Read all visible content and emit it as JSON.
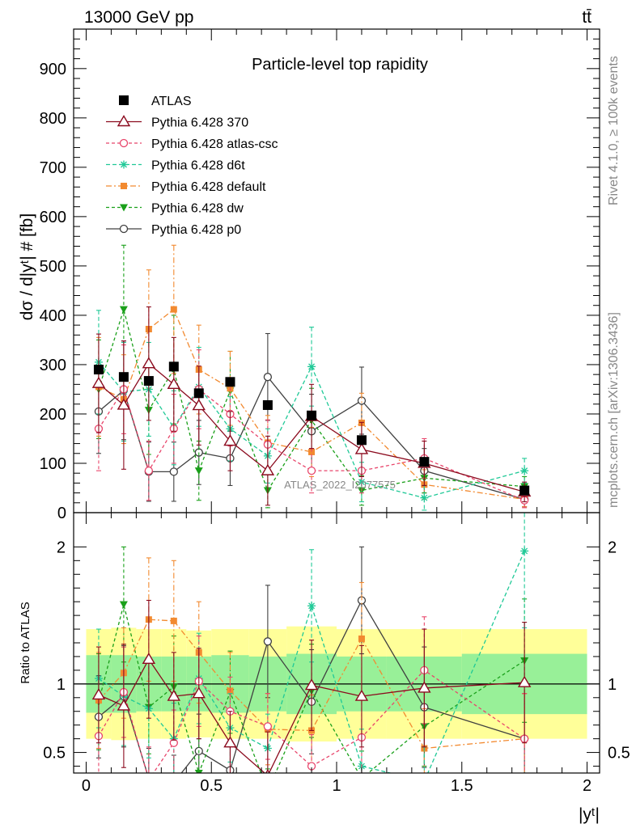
{
  "header": {
    "energy_label": "13000 GeV pp",
    "process_label": "tt̄"
  },
  "side_labels": {
    "rivet": "Rivet 4.1.0, ≥ 100k events",
    "mcplots": "mcplots.cern.ch [arXiv:1306.3436]"
  },
  "colors": {
    "ATLAS": "#000000",
    "p370": "#8b0a1e",
    "atlascsc": "#e8456b",
    "d6t": "#20c997",
    "default": "#f28a30",
    "dw": "#1aa01a",
    "p0": "#404040",
    "band_green": "#98f098",
    "band_yellow": "#ffff99"
  },
  "chart_data": [
    {
      "type": "line",
      "title": "Particle-level top rapidity",
      "ylabel": "dσ / d|yᵗ| # [fb]",
      "xlabel": "|yᵗ|",
      "xlim": [
        -0.05,
        2.05
      ],
      "ylim": [
        0,
        980
      ],
      "yticks": [
        0,
        100,
        200,
        300,
        400,
        500,
        600,
        700,
        800,
        900
      ],
      "annotation": "ATLAS_2022_I2077575",
      "x": [
        0.05,
        0.15,
        0.25,
        0.35,
        0.45,
        0.575,
        0.725,
        0.9,
        1.1,
        1.35,
        1.75
      ],
      "series": [
        {
          "name": "ATLAS",
          "key": "ATLAS",
          "marker": "square",
          "values": [
            290,
            275,
            267,
            296,
            242,
            265,
            218,
            197,
            147,
            103,
            45
          ],
          "errors": [
            6,
            6,
            6,
            6,
            6,
            6,
            6,
            6,
            6,
            6,
            6
          ]
        },
        {
          "name": "Pythia 6.428 370",
          "key": "p370",
          "marker": "triangle-open",
          "values": [
            262,
            218,
            302,
            260,
            217,
            145,
            85,
            195,
            128,
            100,
            42
          ],
          "errors": [
            100,
            130,
            115,
            95,
            80,
            60,
            70,
            65,
            55,
            45,
            20
          ]
        },
        {
          "name": "Pythia 6.428 atlas-csc",
          "key": "atlascsc",
          "marker": "circle-open",
          "values": [
            170,
            250,
            85,
            170,
            250,
            200,
            138,
            85,
            85,
            110,
            25
          ],
          "errors": [
            85,
            90,
            60,
            70,
            80,
            65,
            50,
            45,
            45,
            40,
            15
          ]
        },
        {
          "name": "Pythia 6.428 d6t",
          "key": "d6t",
          "marker": "asterisk",
          "values": [
            305,
            245,
            250,
            172,
            255,
            170,
            115,
            296,
            62,
            30,
            85
          ],
          "errors": [
            105,
            100,
            95,
            75,
            80,
            65,
            55,
            80,
            40,
            25,
            25
          ]
        },
        {
          "name": "Pythia 6.428 default",
          "key": "default",
          "marker": "square",
          "values": [
            255,
            230,
            372,
            412,
            290,
            252,
            142,
            123,
            182,
            57,
            27
          ],
          "errors": [
            100,
            90,
            120,
            130,
            90,
            75,
            55,
            50,
            60,
            30,
            15
          ]
        },
        {
          "name": "Pythia 6.428 dw",
          "key": "dw",
          "marker": "triangle-down",
          "values": [
            250,
            412,
            208,
            290,
            85,
            247,
            45,
            187,
            45,
            70,
            53
          ],
          "errors": [
            100,
            130,
            90,
            110,
            60,
            80,
            35,
            65,
            30,
            30,
            20
          ]
        },
        {
          "name": "Pythia 6.428 p0",
          "key": "p0",
          "marker": "circle-open",
          "values": [
            205,
            248,
            83,
            83,
            122,
            110,
            275,
            165,
            227,
            85,
            27
          ],
          "errors": [
            85,
            100,
            60,
            60,
            65,
            55,
            88,
            75,
            68,
            45,
            15
          ]
        }
      ]
    },
    {
      "type": "line",
      "ylabel": "Ratio to ATLAS",
      "xlabel": "|yᵗ|",
      "xlim": [
        -0.05,
        2.05
      ],
      "ylim": [
        0.35,
        2.25
      ],
      "yticks": [
        0.5,
        1,
        2
      ],
      "xticks": [
        0,
        0.5,
        1,
        1.5,
        2
      ],
      "reference": 1,
      "bin_edges": [
        0,
        0.1,
        0.2,
        0.3,
        0.4,
        0.5,
        0.65,
        0.8,
        1.0,
        1.2,
        1.5,
        2.0
      ],
      "band_inner": [
        0.21,
        0.21,
        0.2,
        0.2,
        0.2,
        0.21,
        0.2,
        0.22,
        0.2,
        0.2,
        0.22
      ],
      "band_outer": [
        0.4,
        0.41,
        0.4,
        0.4,
        0.39,
        0.4,
        0.4,
        0.42,
        0.4,
        0.4,
        0.4
      ],
      "x": [
        0.05,
        0.15,
        0.25,
        0.35,
        0.45,
        0.575,
        0.725,
        0.9,
        1.1,
        1.35,
        1.75
      ],
      "series": [
        {
          "name": "Pythia 6.428 370",
          "key": "p370",
          "marker": "triangle-open",
          "values": [
            0.92,
            0.84,
            1.18,
            0.91,
            0.93,
            0.57,
            0.33,
            0.99,
            0.91,
            0.97,
            1.01
          ],
          "errors": [
            0.35,
            0.45,
            0.43,
            0.32,
            0.33,
            0.23,
            0.32,
            0.33,
            0.37,
            0.43,
            0.44
          ]
        },
        {
          "name": "Pythia 6.428 atlas-csc",
          "key": "atlascsc",
          "marker": "circle-open",
          "values": [
            0.62,
            0.94,
            0.3,
            0.57,
            1.02,
            0.8,
            0.69,
            0.4,
            0.61,
            1.1,
            0.6
          ],
          "errors": [
            0.3,
            0.33,
            0.24,
            0.24,
            0.33,
            0.25,
            0.24,
            0.23,
            0.3,
            0.39,
            0.33
          ]
        },
        {
          "name": "Pythia 6.428 d6t",
          "key": "d6t",
          "marker": "asterisk",
          "values": [
            1.04,
            0.91,
            0.82,
            0.6,
            1.04,
            0.68,
            0.53,
            1.57,
            0.4,
            0.29,
            1.97
          ],
          "errors": [
            0.36,
            0.36,
            0.36,
            0.26,
            0.33,
            0.25,
            0.25,
            0.41,
            0.27,
            0.25,
            0.56
          ]
        },
        {
          "name": "Pythia 6.428 default",
          "key": "default",
          "marker": "square",
          "values": [
            0.88,
            1.08,
            1.47,
            1.46,
            1.23,
            0.95,
            0.67,
            0.66,
            1.33,
            0.53,
            0.6
          ],
          "errors": [
            0.35,
            0.33,
            0.45,
            0.44,
            0.37,
            0.28,
            0.26,
            0.26,
            0.41,
            0.29,
            0.33
          ]
        },
        {
          "name": "Pythia 6.428 dw",
          "key": "dw",
          "marker": "triangle-down",
          "values": [
            0.87,
            1.58,
            0.83,
            0.98,
            0.35,
            0.94,
            0.22,
            0.95,
            0.31,
            0.69,
            1.17
          ],
          "errors": [
            0.35,
            0.42,
            0.34,
            0.37,
            0.25,
            0.3,
            0.16,
            0.34,
            0.2,
            0.29,
            0.45
          ]
        },
        {
          "name": "Pythia 6.428 p0",
          "key": "p0",
          "marker": "circle-open",
          "values": [
            0.76,
            0.91,
            0.31,
            0.28,
            0.51,
            0.37,
            1.31,
            0.87,
            1.61,
            0.83,
            0.6
          ],
          "errors": [
            0.3,
            0.37,
            0.22,
            0.2,
            0.27,
            0.21,
            0.41,
            0.38,
            0.39,
            0.44,
            0.33
          ]
        }
      ]
    }
  ]
}
